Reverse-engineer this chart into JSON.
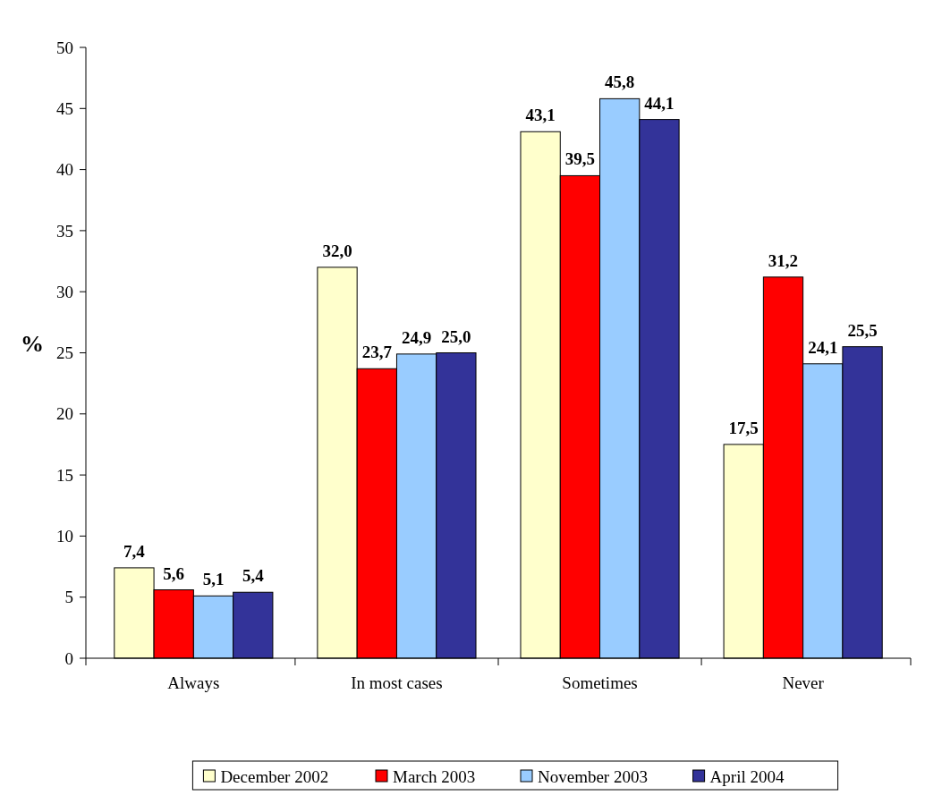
{
  "chart_data": {
    "type": "bar",
    "ylabel": "%",
    "categories": [
      "Always",
      "In most cases",
      "Sometimes",
      "Never"
    ],
    "series": [
      {
        "name": "December 2002",
        "color": "#ffffcc",
        "values": [
          7.4,
          32.0,
          43.1,
          17.5
        ],
        "value_labels": [
          "7,4",
          "32,0",
          "43,1",
          "17,5"
        ]
      },
      {
        "name": "March 2003",
        "color": "#ff0000",
        "values": [
          5.6,
          23.7,
          39.5,
          31.2
        ],
        "value_labels": [
          "5,6",
          "23,7",
          "39,5",
          "31,2"
        ]
      },
      {
        "name": "November 2003",
        "color": "#99ccff",
        "values": [
          5.1,
          24.9,
          45.8,
          24.1
        ],
        "value_labels": [
          "5,1",
          "24,9",
          "45,8",
          "24,1"
        ]
      },
      {
        "name": "April 2004",
        "color": "#333399",
        "values": [
          5.4,
          25.0,
          44.1,
          25.5
        ],
        "value_labels": [
          "5,4",
          "25,0",
          "44,1",
          "25,5"
        ]
      }
    ],
    "ylim": [
      0,
      50
    ],
    "yticks": [
      0,
      5,
      10,
      15,
      20,
      25,
      30,
      35,
      40,
      45,
      50
    ],
    "grid": false,
    "legend": "bottom"
  }
}
